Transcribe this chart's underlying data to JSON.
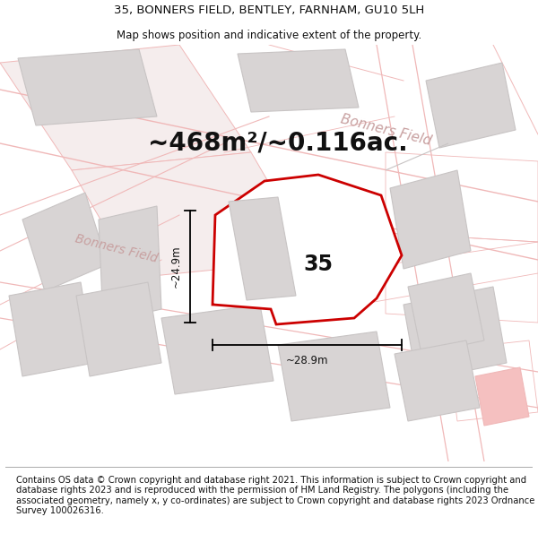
{
  "title_line1": "35, BONNERS FIELD, BENTLEY, FARNHAM, GU10 5LH",
  "title_line2": "Map shows position and indicative extent of the property.",
  "area_text": "~468m²/~0.116ac.",
  "label_35": "35",
  "dim_vertical": "~24.9m",
  "dim_horizontal": "~28.9m",
  "road_label_left": "Bonners Field",
  "road_label_right": "Bonners Field",
  "footer": "Contains OS data © Crown copyright and database right 2021. This information is subject to Crown copyright and database rights 2023 and is reproduced with the permission of HM Land Registry. The polygons (including the associated geometry, namely x, y co-ordinates) are subject to Crown copyright and database rights 2023 Ordnance Survey 100026316.",
  "bg_color": "#ffffff",
  "map_bg": "#f8f4f4",
  "plot_color": "#cc0000",
  "plot_fill": "#ffffff",
  "road_color": "#f0b8b8",
  "road_fill": "#f5eded",
  "building_color": "#d8d4d4",
  "building_edge": "#c8c4c4",
  "highlight_fill": "#f5c0c0",
  "title_fontsize": 9.5,
  "area_fontsize": 20,
  "label_fontsize": 16,
  "footer_fontsize": 7.2
}
